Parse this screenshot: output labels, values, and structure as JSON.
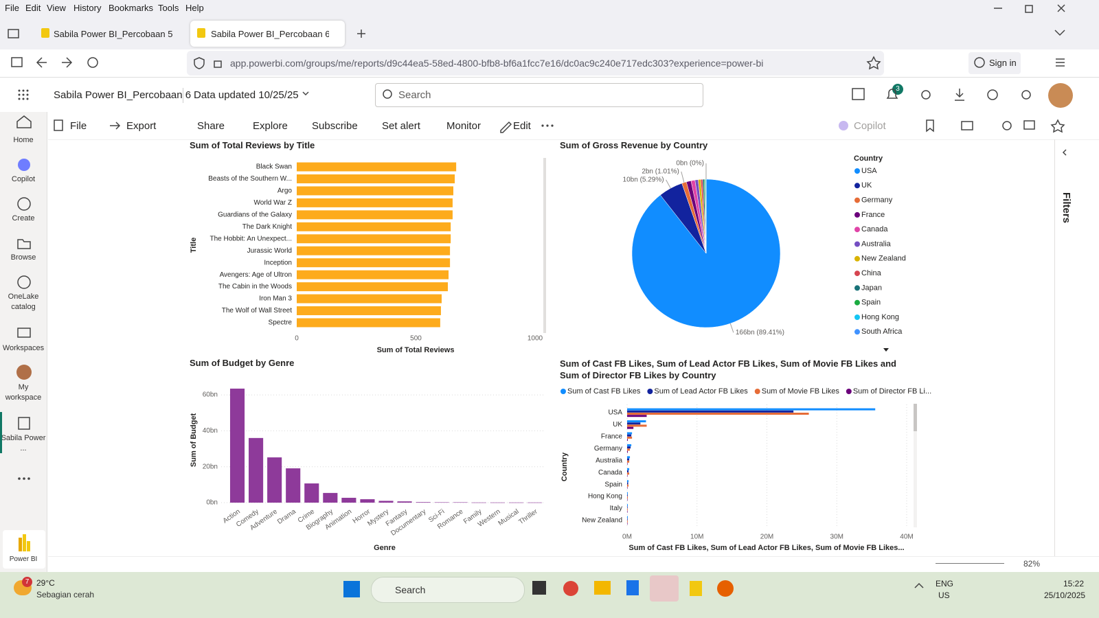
{
  "browser": {
    "menu": [
      "File",
      "Edit",
      "View",
      "History",
      "Bookmarks",
      "Tools",
      "Help"
    ],
    "tabs": [
      "Sabila Power BI_Percobaan 5 - P",
      "Sabila Power BI_Percobaan 6 - P"
    ],
    "url": "app.powerbi.com/groups/me/reports/d9c44ea5-58ed-4800-bfb8-bf6a1fcc7e16/dc0ac9c240e717edc303?experience=power-bi",
    "sign_in": "Sign in"
  },
  "app": {
    "report_name": "Sabila Power BI_Percobaan 6",
    "data_updated": "Data updated 10/25/25",
    "search": "Search",
    "notifications": "3",
    "toolbar": [
      "File",
      "Export",
      "Share",
      "Explore",
      "Subscribe",
      "Set alert",
      "Monitor",
      "Edit"
    ],
    "copilot": "Copilot",
    "nav": [
      "Home",
      "Copilot",
      "Create",
      "Browse",
      "OneLake catalog",
      "Workspaces",
      "My workspace",
      "Sabila Power ...",
      "Power BI"
    ],
    "filters": "Filters",
    "zoom": "82%"
  },
  "taskbar": {
    "temperature": "29°C",
    "weather": "Sebagian cerah",
    "weather_badge": "7",
    "search": "Search",
    "lang": "ENG",
    "region": "US",
    "time": "15:22",
    "date": "25/10/2025"
  },
  "chart_data": [
    {
      "type": "bar",
      "orientation": "horizontal",
      "title": "Sum of Total Reviews by Title",
      "categories": [
        "Black Swan",
        "Beasts of the Southern W...",
        "Argo",
        "World War Z",
        "Guardians of the Galaxy",
        "The Dark Knight",
        "The Hobbit: An Unexpect...",
        "Jurassic World",
        "Inception",
        "Avengers: Age of Ultron",
        "The Cabin in the Woods",
        "Iron Man 3",
        "The Wolf of Wall Street",
        "Spectre"
      ],
      "values": [
        669,
        663,
        657,
        654,
        654,
        646,
        646,
        643,
        643,
        637,
        634,
        608,
        605,
        602
      ],
      "color": "#fdab1c",
      "xlim": [
        0,
        1000
      ],
      "xticks": [
        0,
        500,
        1000
      ],
      "x_label": "Sum of Total Reviews",
      "y_label": "Title",
      "grid": false
    },
    {
      "type": "pie",
      "title": "Sum of Gross Revenue by Country",
      "legend_title": "Country",
      "categories": [
        "USA",
        "UK",
        "Germany",
        "France",
        "Canada",
        "Australia",
        "New Zealand",
        "China",
        "Japan",
        "Spain",
        "Hong Kong",
        "South Africa"
      ],
      "values": [
        166,
        9.82,
        1.875,
        1.9,
        1.6,
        1.3,
        1.0,
        0.8,
        0.6,
        0.45,
        0.3,
        0.015
      ],
      "value_labels": [
        "166bn (89.41%)",
        "10bn (5.29%)",
        "2bn (1.01%)",
        null,
        null,
        null,
        null,
        null,
        null,
        null,
        null,
        "0bn (0%)"
      ],
      "colors": [
        "#118dff",
        "#12239e",
        "#e66c37",
        "#6b007b",
        "#e044a7",
        "#744ec2",
        "#d9b300",
        "#d64550",
        "#197278",
        "#1aab40",
        "#15c6f4",
        "#4092ff"
      ]
    },
    {
      "type": "bar",
      "orientation": "vertical",
      "title": "Sum of Budget by Genre",
      "categories": [
        "Action",
        "Comedy",
        "Adventure",
        "Drama",
        "Crime",
        "Biography",
        "Animation",
        "Horror",
        "Mystery",
        "Fantasy",
        "Documentary",
        "Sci-Fi",
        "Romance",
        "Family",
        "Western",
        "Musical",
        "Thriller"
      ],
      "values": [
        63.5,
        36,
        25.2,
        19.1,
        10.7,
        5.4,
        2.7,
        1.9,
        1.0,
        0.7,
        0.3,
        0.2,
        0.2,
        0.1,
        0.1,
        0.1,
        0.1
      ],
      "color": "#8e3a9a",
      "ylim": [
        0,
        66
      ],
      "yticks": [
        {
          "value": 0,
          "label": "0bn"
        },
        {
          "value": 20,
          "label": "20bn"
        },
        {
          "value": 40,
          "label": "40bn"
        },
        {
          "value": 60,
          "label": "60bn"
        }
      ],
      "x_label": "Genre",
      "y_label": "Sum of Budget",
      "grid": true
    },
    {
      "type": "bar",
      "orientation": "horizontal",
      "title": "Sum of Cast FB Likes, Sum of Lead Actor FB Likes, Sum of Movie FB Likes and Sum of Director FB Likes by Country",
      "categories": [
        "USA",
        "UK",
        "France",
        "Germany",
        "Australia",
        "Canada",
        "Spain",
        "Hong Kong",
        "Italy",
        "New Zealand"
      ],
      "series": [
        {
          "name": "Sum of Cast FB Likes",
          "color": "#118dff",
          "values": [
            35.5,
            2.7,
            0.7,
            0.6,
            0.4,
            0.3,
            0.2,
            0.1,
            0.1,
            0.1
          ]
        },
        {
          "name": "Sum of Lead Actor FB Likes",
          "color": "#12239e",
          "values": [
            23.8,
            1.9,
            0.6,
            0.5,
            0.3,
            0.2,
            0.15,
            0.08,
            0.07,
            0.07
          ]
        },
        {
          "name": "Sum of Movie FB Likes",
          "color": "#e66c37",
          "values": [
            26,
            2.8,
            0.7,
            0.4,
            0.3,
            0.3,
            0.2,
            0.1,
            0.08,
            0.08
          ]
        },
        {
          "name": "Sum of Director FB Li...",
          "color": "#6b007b",
          "values": [
            2.8,
            0.9,
            0.1,
            0.1,
            0.05,
            0.05,
            0.02,
            0.01,
            0.01,
            0.01
          ]
        }
      ],
      "xlim": [
        0,
        40
      ],
      "xticks": [
        {
          "value": 0,
          "label": "0M"
        },
        {
          "value": 10,
          "label": "10M"
        },
        {
          "value": 20,
          "label": "20M"
        },
        {
          "value": 30,
          "label": "30M"
        },
        {
          "value": 40,
          "label": "40M"
        }
      ],
      "x_label": "Sum of Cast FB Likes, Sum of Lead Actor FB Likes, Sum of Movie FB Likes...",
      "y_label": "Country",
      "grid": true,
      "legend": true
    }
  ]
}
